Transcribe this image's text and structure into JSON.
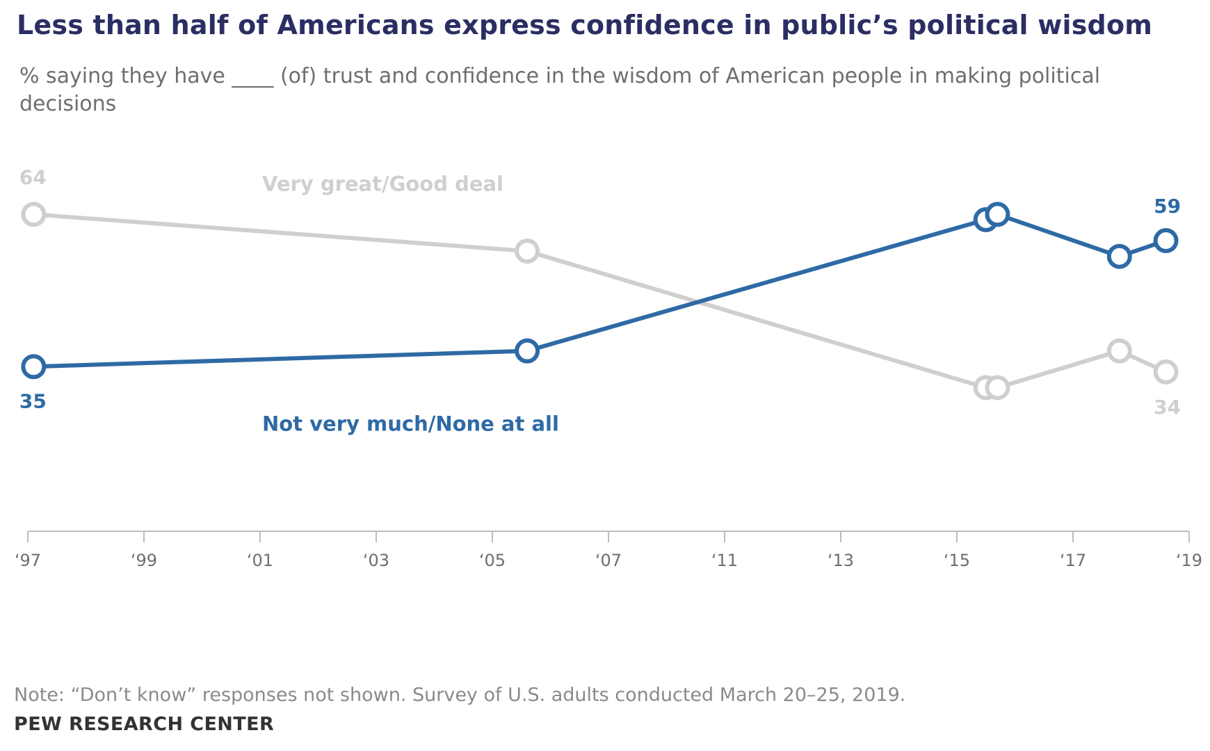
{
  "title": "Less than half of Americans express confidence in public’s political wisdom",
  "subtitle": "% saying they have ____ (of) trust and confidence in the wisdom of American people in making political decisions",
  "note": "Note: “Don’t know” responses not shown. Survey of U.S. adults conducted March 20–25, 2019.",
  "source": "PEW RESEARCH CENTER",
  "chart_data": {
    "type": "line",
    "x_ticks": [
      1997,
      1999,
      2001,
      2003,
      2005,
      2007,
      2011,
      2013,
      2015,
      2017,
      2019
    ],
    "x_tick_labels": [
      "‘97",
      "‘99",
      "‘01",
      "‘03",
      "‘05",
      "‘07",
      "‘11",
      "‘13",
      "‘15",
      "‘17",
      "‘19"
    ],
    "ylim": [
      10,
      70
    ],
    "grid": false,
    "legend": "inline labels",
    "series": [
      {
        "name": "Very great/Good deal",
        "color": "#cfcfcf",
        "points": [
          {
            "x": 1997.1,
            "y": 64
          },
          {
            "x": 2005.6,
            "y": 57
          },
          {
            "x": 2015.5,
            "y": 31
          },
          {
            "x": 2015.7,
            "y": 31
          },
          {
            "x": 2017.8,
            "y": 38
          },
          {
            "x": 2018.6,
            "y": 34
          }
        ],
        "start_label": "64",
        "end_label": "34"
      },
      {
        "name": "Not very much/None at all",
        "color": "#2e6aa5",
        "points": [
          {
            "x": 1997.1,
            "y": 35
          },
          {
            "x": 2005.6,
            "y": 38
          },
          {
            "x": 2015.5,
            "y": 63
          },
          {
            "x": 2015.7,
            "y": 64
          },
          {
            "x": 2017.8,
            "y": 56
          },
          {
            "x": 2018.6,
            "y": 59
          }
        ],
        "start_label": "35",
        "end_label": "59"
      }
    ]
  }
}
